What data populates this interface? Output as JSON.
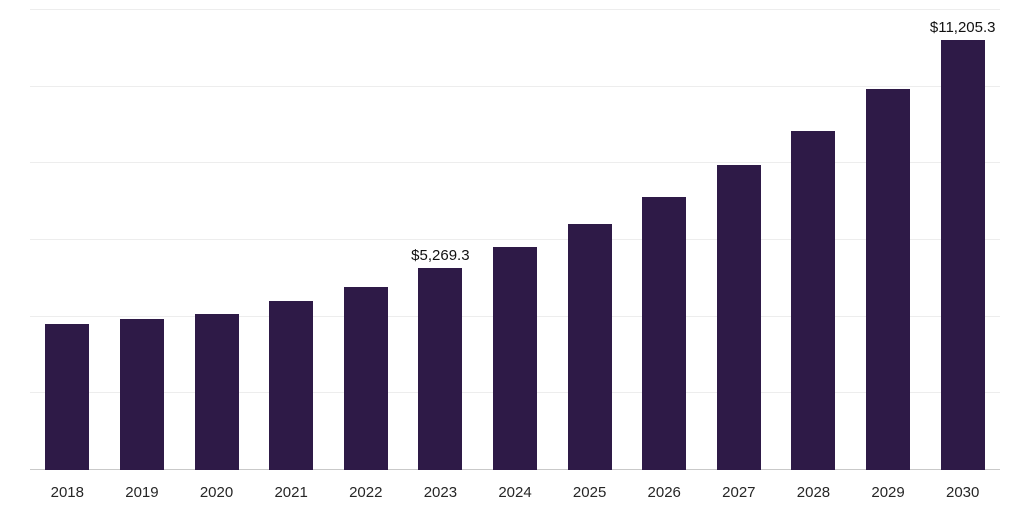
{
  "chart_data": {
    "type": "bar",
    "title": "",
    "xlabel": "",
    "ylabel": "",
    "categories": [
      "2018",
      "2019",
      "2020",
      "2021",
      "2022",
      "2023",
      "2024",
      "2025",
      "2026",
      "2027",
      "2028",
      "2029",
      "2030"
    ],
    "values": [
      3810,
      3930,
      4080,
      4420,
      4780,
      5269.3,
      5830,
      6410,
      7130,
      7950,
      8840,
      9940,
      11205.3
    ],
    "ylim": [
      0,
      12000
    ],
    "gridline_step": 2000,
    "grid": true,
    "legend": false,
    "bar_color": "#2e1a47",
    "background_color": "#ffffff",
    "axis_line_color": "#c9c9c9",
    "gridline_color": "#ededed",
    "tick_label_color": "#262626",
    "annotation_color": "#111111",
    "annotations": [
      {
        "category": "2023",
        "text": "$5,269.3"
      },
      {
        "category": "2030",
        "text": "$11,205.3"
      }
    ]
  }
}
